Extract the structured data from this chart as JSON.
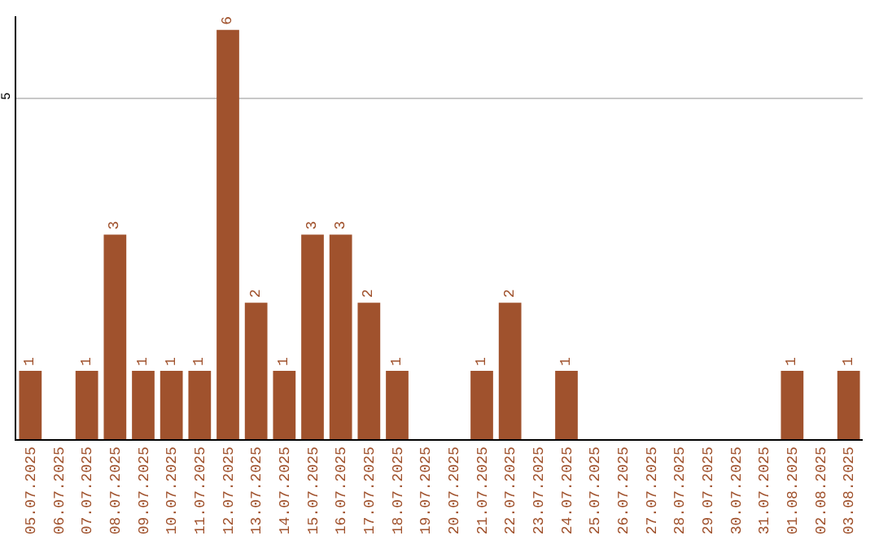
{
  "chart_data": {
    "type": "bar",
    "categories": [
      "05.07.2025",
      "06.07.2025",
      "07.07.2025",
      "08.07.2025",
      "09.07.2025",
      "10.07.2025",
      "11.07.2025",
      "12.07.2025",
      "13.07.2025",
      "14.07.2025",
      "15.07.2025",
      "16.07.2025",
      "17.07.2025",
      "18.07.2025",
      "19.07.2025",
      "20.07.2025",
      "21.07.2025",
      "22.07.2025",
      "23.07.2025",
      "24.07.2025",
      "25.07.2025",
      "26.07.2025",
      "27.07.2025",
      "28.07.2025",
      "29.07.2025",
      "30.07.2025",
      "31.07.2025",
      "01.08.2025",
      "02.08.2025",
      "03.08.2025"
    ],
    "values": [
      1,
      0,
      1,
      3,
      1,
      1,
      1,
      6,
      2,
      1,
      3,
      3,
      2,
      1,
      0,
      0,
      1,
      2,
      0,
      1,
      0,
      0,
      0,
      0,
      0,
      0,
      0,
      1,
      0,
      1
    ],
    "value_labels": [
      "1",
      null,
      "1",
      "3",
      "1",
      "1",
      "1",
      "6",
      "2",
      "1",
      "3",
      "3",
      "2",
      "1",
      null,
      null,
      "1",
      "2",
      null,
      "1",
      null,
      null,
      null,
      null,
      null,
      null,
      null,
      "1",
      null,
      "1"
    ],
    "color": "#a0522d",
    "ylim": [
      0,
      6.2
    ],
    "yticks": [
      5
    ],
    "grid": "y"
  }
}
